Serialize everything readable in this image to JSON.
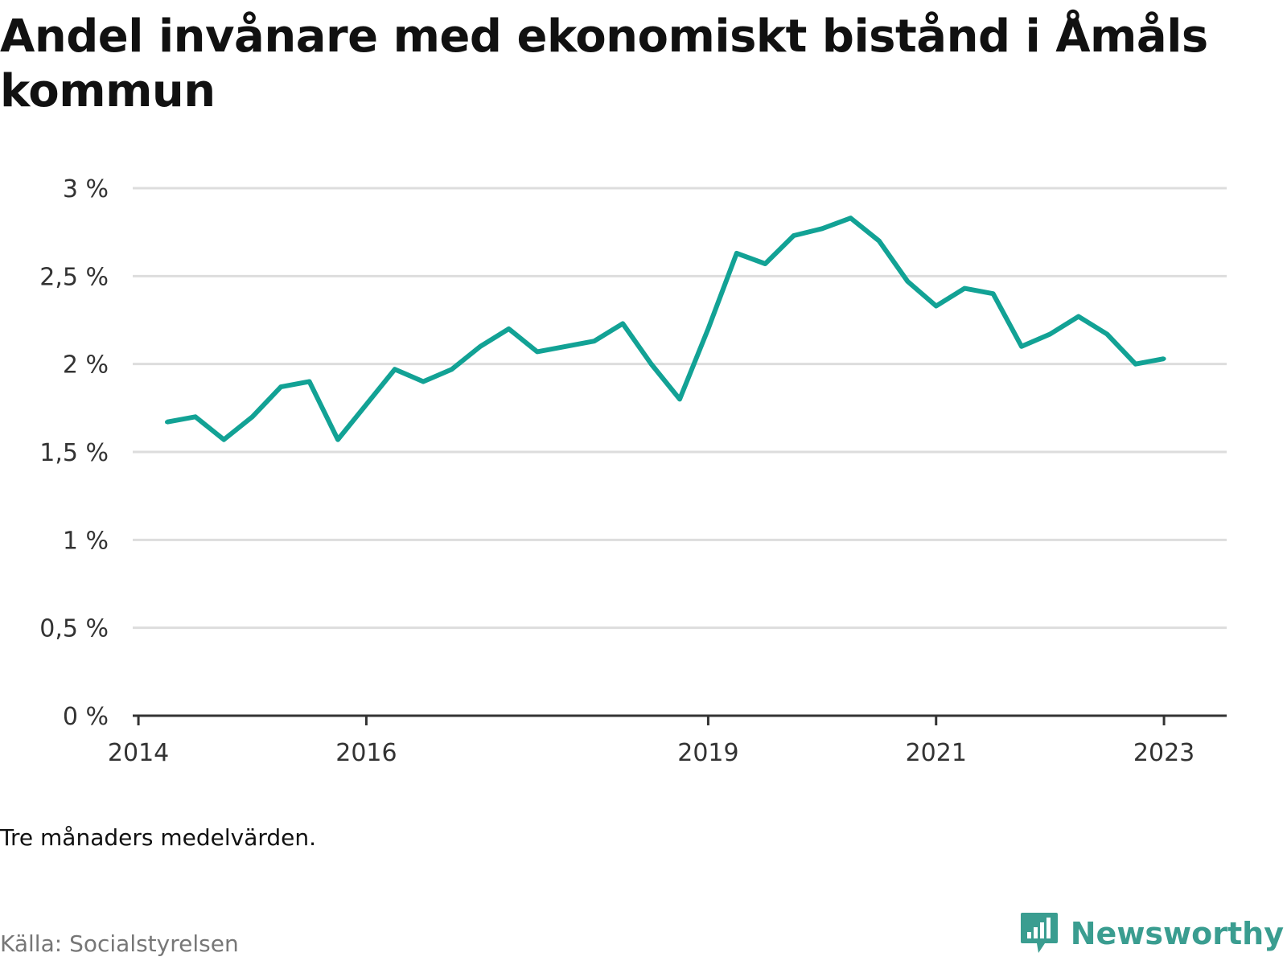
{
  "title": "Andel invånare med ekonomiskt bistånd i Åmåls kommun",
  "note": "Tre månaders medelvärden.",
  "source": "Källa: Socialstyrelsen",
  "brand": "Newsworthy",
  "colors": {
    "line": "#12a295",
    "grid": "#dddddd",
    "axis": "#333333",
    "brand": "#3a9d90"
  },
  "chart_data": {
    "type": "line",
    "title": "Andel invånare med ekonomiskt bistånd i Åmåls kommun",
    "xlabel": "",
    "ylabel": "",
    "ylim": [
      0,
      3
    ],
    "xlim": [
      2013.95,
      2023.55
    ],
    "yticks": [
      {
        "value": 0,
        "label": "0 %"
      },
      {
        "value": 0.5,
        "label": "0,5 %"
      },
      {
        "value": 1,
        "label": "1 %"
      },
      {
        "value": 1.5,
        "label": "1,5 %"
      },
      {
        "value": 2,
        "label": "2 %"
      },
      {
        "value": 2.5,
        "label": "2,5 %"
      },
      {
        "value": 3,
        "label": "3 %"
      }
    ],
    "xticks": [
      {
        "value": 2014,
        "label": "2014"
      },
      {
        "value": 2016,
        "label": "2016"
      },
      {
        "value": 2019,
        "label": "2019"
      },
      {
        "value": 2021,
        "label": "2021"
      },
      {
        "value": 2023,
        "label": "2023"
      }
    ],
    "grid": true,
    "series": [
      {
        "points": [
          [
            2014.25,
            1.67
          ],
          [
            2014.5,
            1.7
          ],
          [
            2014.75,
            1.57
          ],
          [
            2015.0,
            1.7
          ],
          [
            2015.25,
            1.87
          ],
          [
            2015.5,
            1.9
          ],
          [
            2015.75,
            1.57
          ],
          [
            2016.0,
            1.77
          ],
          [
            2016.25,
            1.97
          ],
          [
            2016.5,
            1.9
          ],
          [
            2016.75,
            1.97
          ],
          [
            2017.0,
            2.1
          ],
          [
            2017.25,
            2.2
          ],
          [
            2017.5,
            2.07
          ],
          [
            2017.75,
            2.1
          ],
          [
            2018.0,
            2.13
          ],
          [
            2018.25,
            2.23
          ],
          [
            2018.5,
            2.0
          ],
          [
            2018.75,
            1.8
          ],
          [
            2019.0,
            2.2
          ],
          [
            2019.25,
            2.63
          ],
          [
            2019.5,
            2.57
          ],
          [
            2019.75,
            2.73
          ],
          [
            2020.0,
            2.77
          ],
          [
            2020.25,
            2.83
          ],
          [
            2020.5,
            2.7
          ],
          [
            2020.75,
            2.47
          ],
          [
            2021.0,
            2.33
          ],
          [
            2021.25,
            2.43
          ],
          [
            2021.5,
            2.4
          ],
          [
            2021.75,
            2.1
          ],
          [
            2022.0,
            2.17
          ],
          [
            2022.25,
            2.27
          ],
          [
            2022.5,
            2.17
          ],
          [
            2022.75,
            2.0
          ],
          [
            2023.0,
            2.03
          ]
        ]
      }
    ]
  }
}
